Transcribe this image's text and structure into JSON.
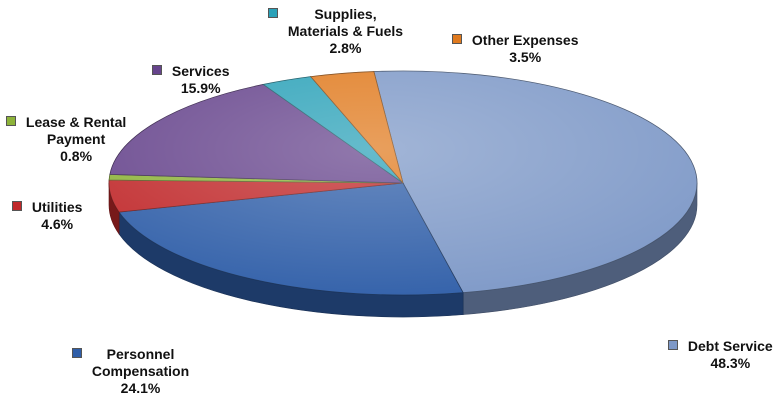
{
  "chart_data": {
    "type": "pie",
    "title": "",
    "slices": [
      {
        "name": "Debt Service",
        "label_lines": [
          "Debt Service"
        ],
        "value": 48.3,
        "value_label": "48.3%",
        "color": "#7d98c7"
      },
      {
        "name": "Personnel Compensation",
        "label_lines": [
          "Personnel",
          "Compensation"
        ],
        "value": 24.1,
        "value_label": "24.1%",
        "color": "#2f5ea8"
      },
      {
        "name": "Utilities",
        "label_lines": [
          "Utilities"
        ],
        "value": 4.6,
        "value_label": "4.6%",
        "color": "#c0282a"
      },
      {
        "name": "Lease & Rental Payment",
        "label_lines": [
          "Lease & Rental",
          "Payment"
        ],
        "value": 0.8,
        "value_label": "0.8%",
        "color": "#8db33a"
      },
      {
        "name": "Services",
        "label_lines": [
          "Services"
        ],
        "value": 15.9,
        "value_label": "15.9%",
        "color": "#66448c"
      },
      {
        "name": "Supplies, Materials & Fuels",
        "label_lines": [
          "Supplies,",
          "Materials & Fuels"
        ],
        "value": 2.8,
        "value_label": "2.8%",
        "color": "#2aa1b8"
      },
      {
        "name": "Other Expenses",
        "label_lines": [
          "Other Expenses"
        ],
        "value": 3.5,
        "value_label": "3.5%",
        "color": "#e07a1e"
      }
    ],
    "style": "3d-pie",
    "legend": "none"
  }
}
